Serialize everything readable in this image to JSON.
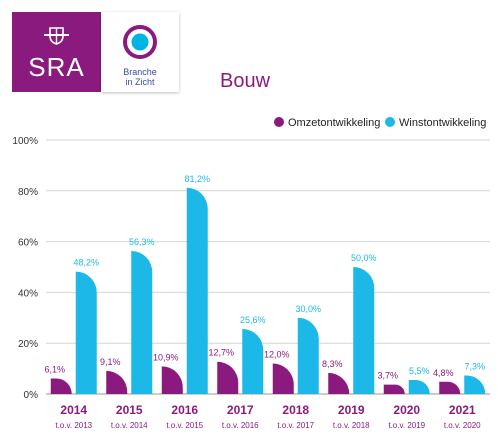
{
  "logos": {
    "sra_text": "SRA",
    "bic_line1": "Branche",
    "bic_line2": "in Zicht",
    "brand_purple": "#8b1a7e",
    "brand_blue": "#3a4f9e",
    "brand_cyan": "#00b3e3"
  },
  "chart_data": {
    "type": "bar",
    "title": "Bouw",
    "categories": [
      "2014",
      "2015",
      "2016",
      "2017",
      "2018",
      "2019",
      "2020",
      "2021"
    ],
    "sublabels": [
      "t.o.v. 2013",
      "t.o.v. 2014",
      "t.o.v. 2015",
      "t.o.v. 2016",
      "t.o.v. 2017",
      "t.o.v. 2018",
      "t.o.v. 2019",
      "t.o.v. 2020"
    ],
    "series": [
      {
        "name": "Omzetontwikkeling",
        "color": "#8b1a7e",
        "values": [
          6.1,
          9.1,
          10.9,
          12.7,
          12.0,
          8.3,
          3.7,
          4.8
        ],
        "labels": [
          "6,1%",
          "9,1%",
          "10,9%",
          "12,7%",
          "12,0%",
          "8,3%",
          "3,7%",
          "4,8%"
        ]
      },
      {
        "name": "Winstontwikkeling",
        "color": "#1bb8e8",
        "values": [
          48.2,
          56.3,
          81.2,
          25.6,
          30.0,
          50.0,
          5.5,
          7.3
        ],
        "labels": [
          "48,2%",
          "56,3%",
          "81,2%",
          "25,6%",
          "30,0%",
          "50,0%",
          "5,5%",
          "7,3%"
        ]
      }
    ],
    "ylim": [
      0,
      100
    ],
    "yticks": [
      "0%",
      "20%",
      "40%",
      "60%",
      "80%",
      "100%"
    ],
    "grid": true,
    "legend_position": "top-right"
  }
}
